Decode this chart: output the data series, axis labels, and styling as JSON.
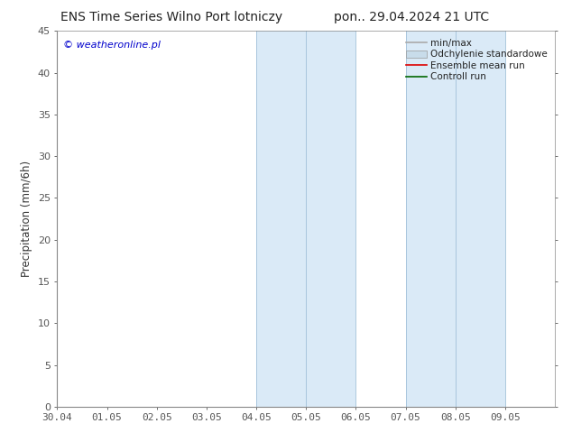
{
  "title_left": "ENS Time Series Wilno Port lotniczy",
  "title_right": "pon.. 29.04.2024 21 UTC",
  "ylabel": "Precipitation (mm/6h)",
  "watermark": "© weatheronline.pl",
  "watermark_color": "#0000cc",
  "xlim_start": 0.0,
  "xlim_end": 10.0,
  "ylim": [
    0,
    45
  ],
  "yticks": [
    0,
    5,
    10,
    15,
    20,
    25,
    30,
    35,
    40,
    45
  ],
  "xtick_labels": [
    "30.04",
    "01.05",
    "02.05",
    "03.05",
    "04.05",
    "05.05",
    "06.05",
    "07.05",
    "08.05",
    "09.05"
  ],
  "shaded_bands": [
    {
      "xmin": 4.0,
      "xmax": 5.0,
      "color": "#daeaf7"
    },
    {
      "xmin": 5.0,
      "xmax": 6.0,
      "color": "#daeaf7"
    },
    {
      "xmin": 7.0,
      "xmax": 8.0,
      "color": "#daeaf7"
    },
    {
      "xmin": 8.0,
      "xmax": 9.0,
      "color": "#daeaf7"
    }
  ],
  "band_edge_color": "#a0c0d8",
  "legend_entries": [
    {
      "label": "min/max",
      "color": "#aaaaaa",
      "lw": 1.2,
      "type": "line"
    },
    {
      "label": "Odchylenie standardowe",
      "color": "#c8dcea",
      "type": "patch"
    },
    {
      "label": "Ensemble mean run",
      "color": "#dd0000",
      "lw": 1.2,
      "type": "line"
    },
    {
      "label": "Controll run",
      "color": "#006600",
      "lw": 1.2,
      "type": "line"
    }
  ],
  "bg_color": "#ffffff",
  "spine_color": "#888888",
  "title_fontsize": 10,
  "tick_fontsize": 8,
  "ylabel_fontsize": 8.5,
  "legend_fontsize": 7.5
}
